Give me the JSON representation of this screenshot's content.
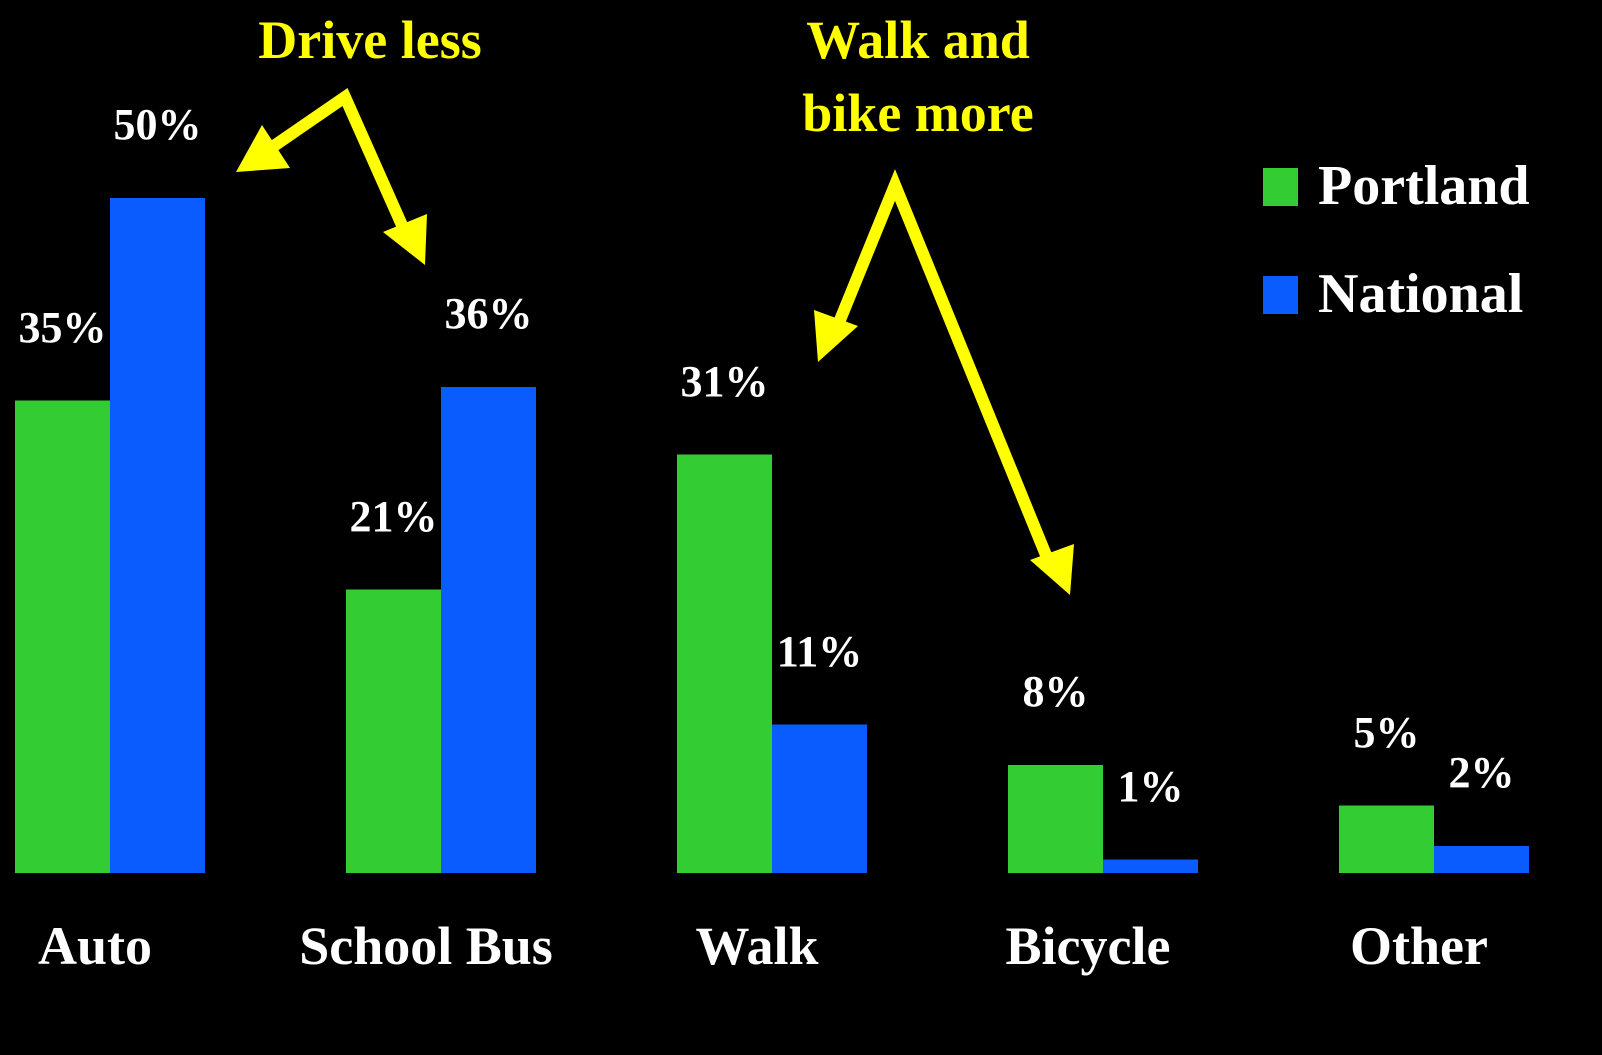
{
  "chart_data": {
    "type": "bar",
    "categories": [
      "Auto",
      "School Bus",
      "Walk",
      "Bicycle",
      "Other"
    ],
    "series": [
      {
        "name": "Portland",
        "color": "#33cc33",
        "values": [
          35,
          21,
          31,
          8,
          5
        ],
        "value_labels": [
          "35%",
          "21%",
          "31%",
          "8%",
          "5%"
        ]
      },
      {
        "name": "National",
        "color": "#0a5cff",
        "values": [
          50,
          36,
          11,
          1,
          2
        ],
        "value_labels": [
          "50%",
          "36%",
          "11%",
          "1%",
          "2%"
        ]
      }
    ],
    "ylim": [
      0,
      50
    ],
    "legend": "top-right",
    "annotations": [
      "Drive less",
      "Walk and bike more"
    ]
  }
}
